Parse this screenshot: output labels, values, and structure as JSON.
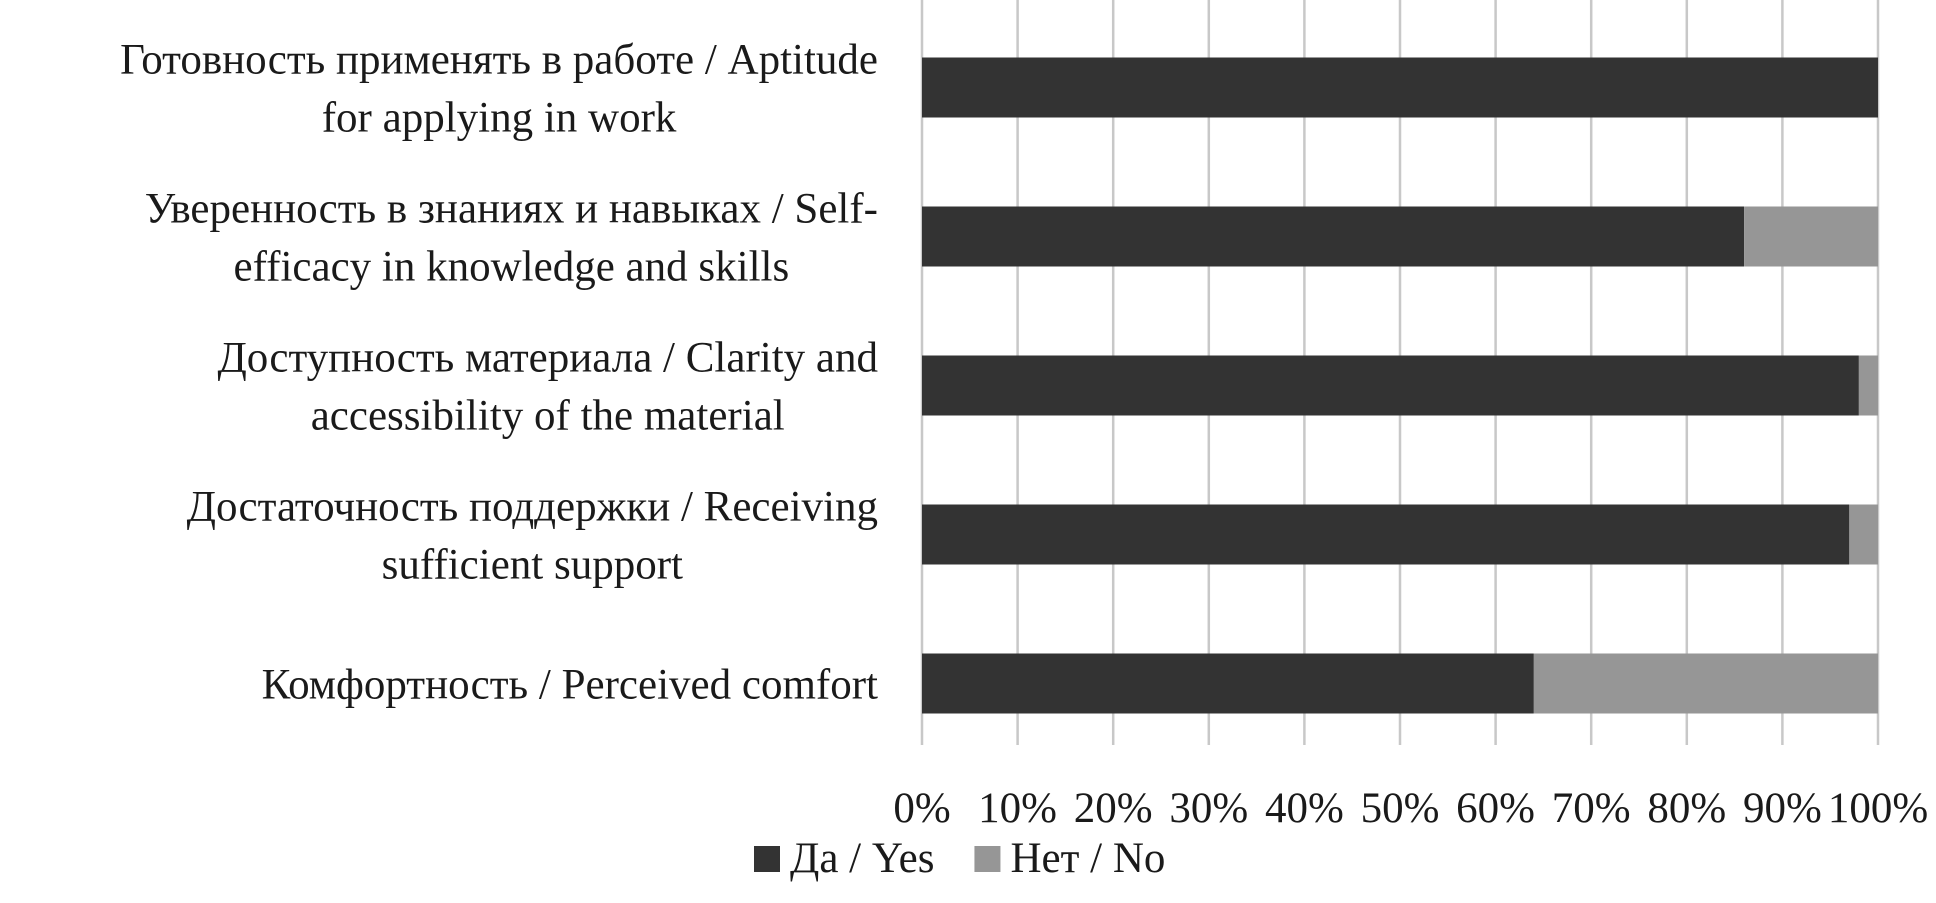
{
  "chart_data": {
    "type": "bar",
    "orientation": "horizontal",
    "stacked": true,
    "percent": true,
    "categories": [
      [
        "Готовность применять в работе / Aptitude",
        "for applying in work"
      ],
      [
        "Уверенность в знаниях и навыках / Self-",
        "efficacy in knowledge and skills"
      ],
      [
        "Доступность материала / Clarity and",
        "accessibility of the material"
      ],
      [
        "Достаточность поддержки / Receiving",
        "sufficient support"
      ],
      [
        "Комфортность / Perceived comfort"
      ]
    ],
    "series": [
      {
        "name": "Да / Yes",
        "color": "#333333",
        "values": [
          100,
          86,
          98,
          97,
          64
        ]
      },
      {
        "name": "Нет / No",
        "color": "#969696",
        "values": [
          0,
          14,
          2,
          3,
          36
        ]
      }
    ],
    "xlim": [
      0,
      100
    ],
    "xticks": [
      "0%",
      "10%",
      "20%",
      "30%",
      "40%",
      "50%",
      "60%",
      "70%",
      "80%",
      "90%",
      "100%"
    ],
    "grid": "vertical",
    "legend": "bottom"
  }
}
